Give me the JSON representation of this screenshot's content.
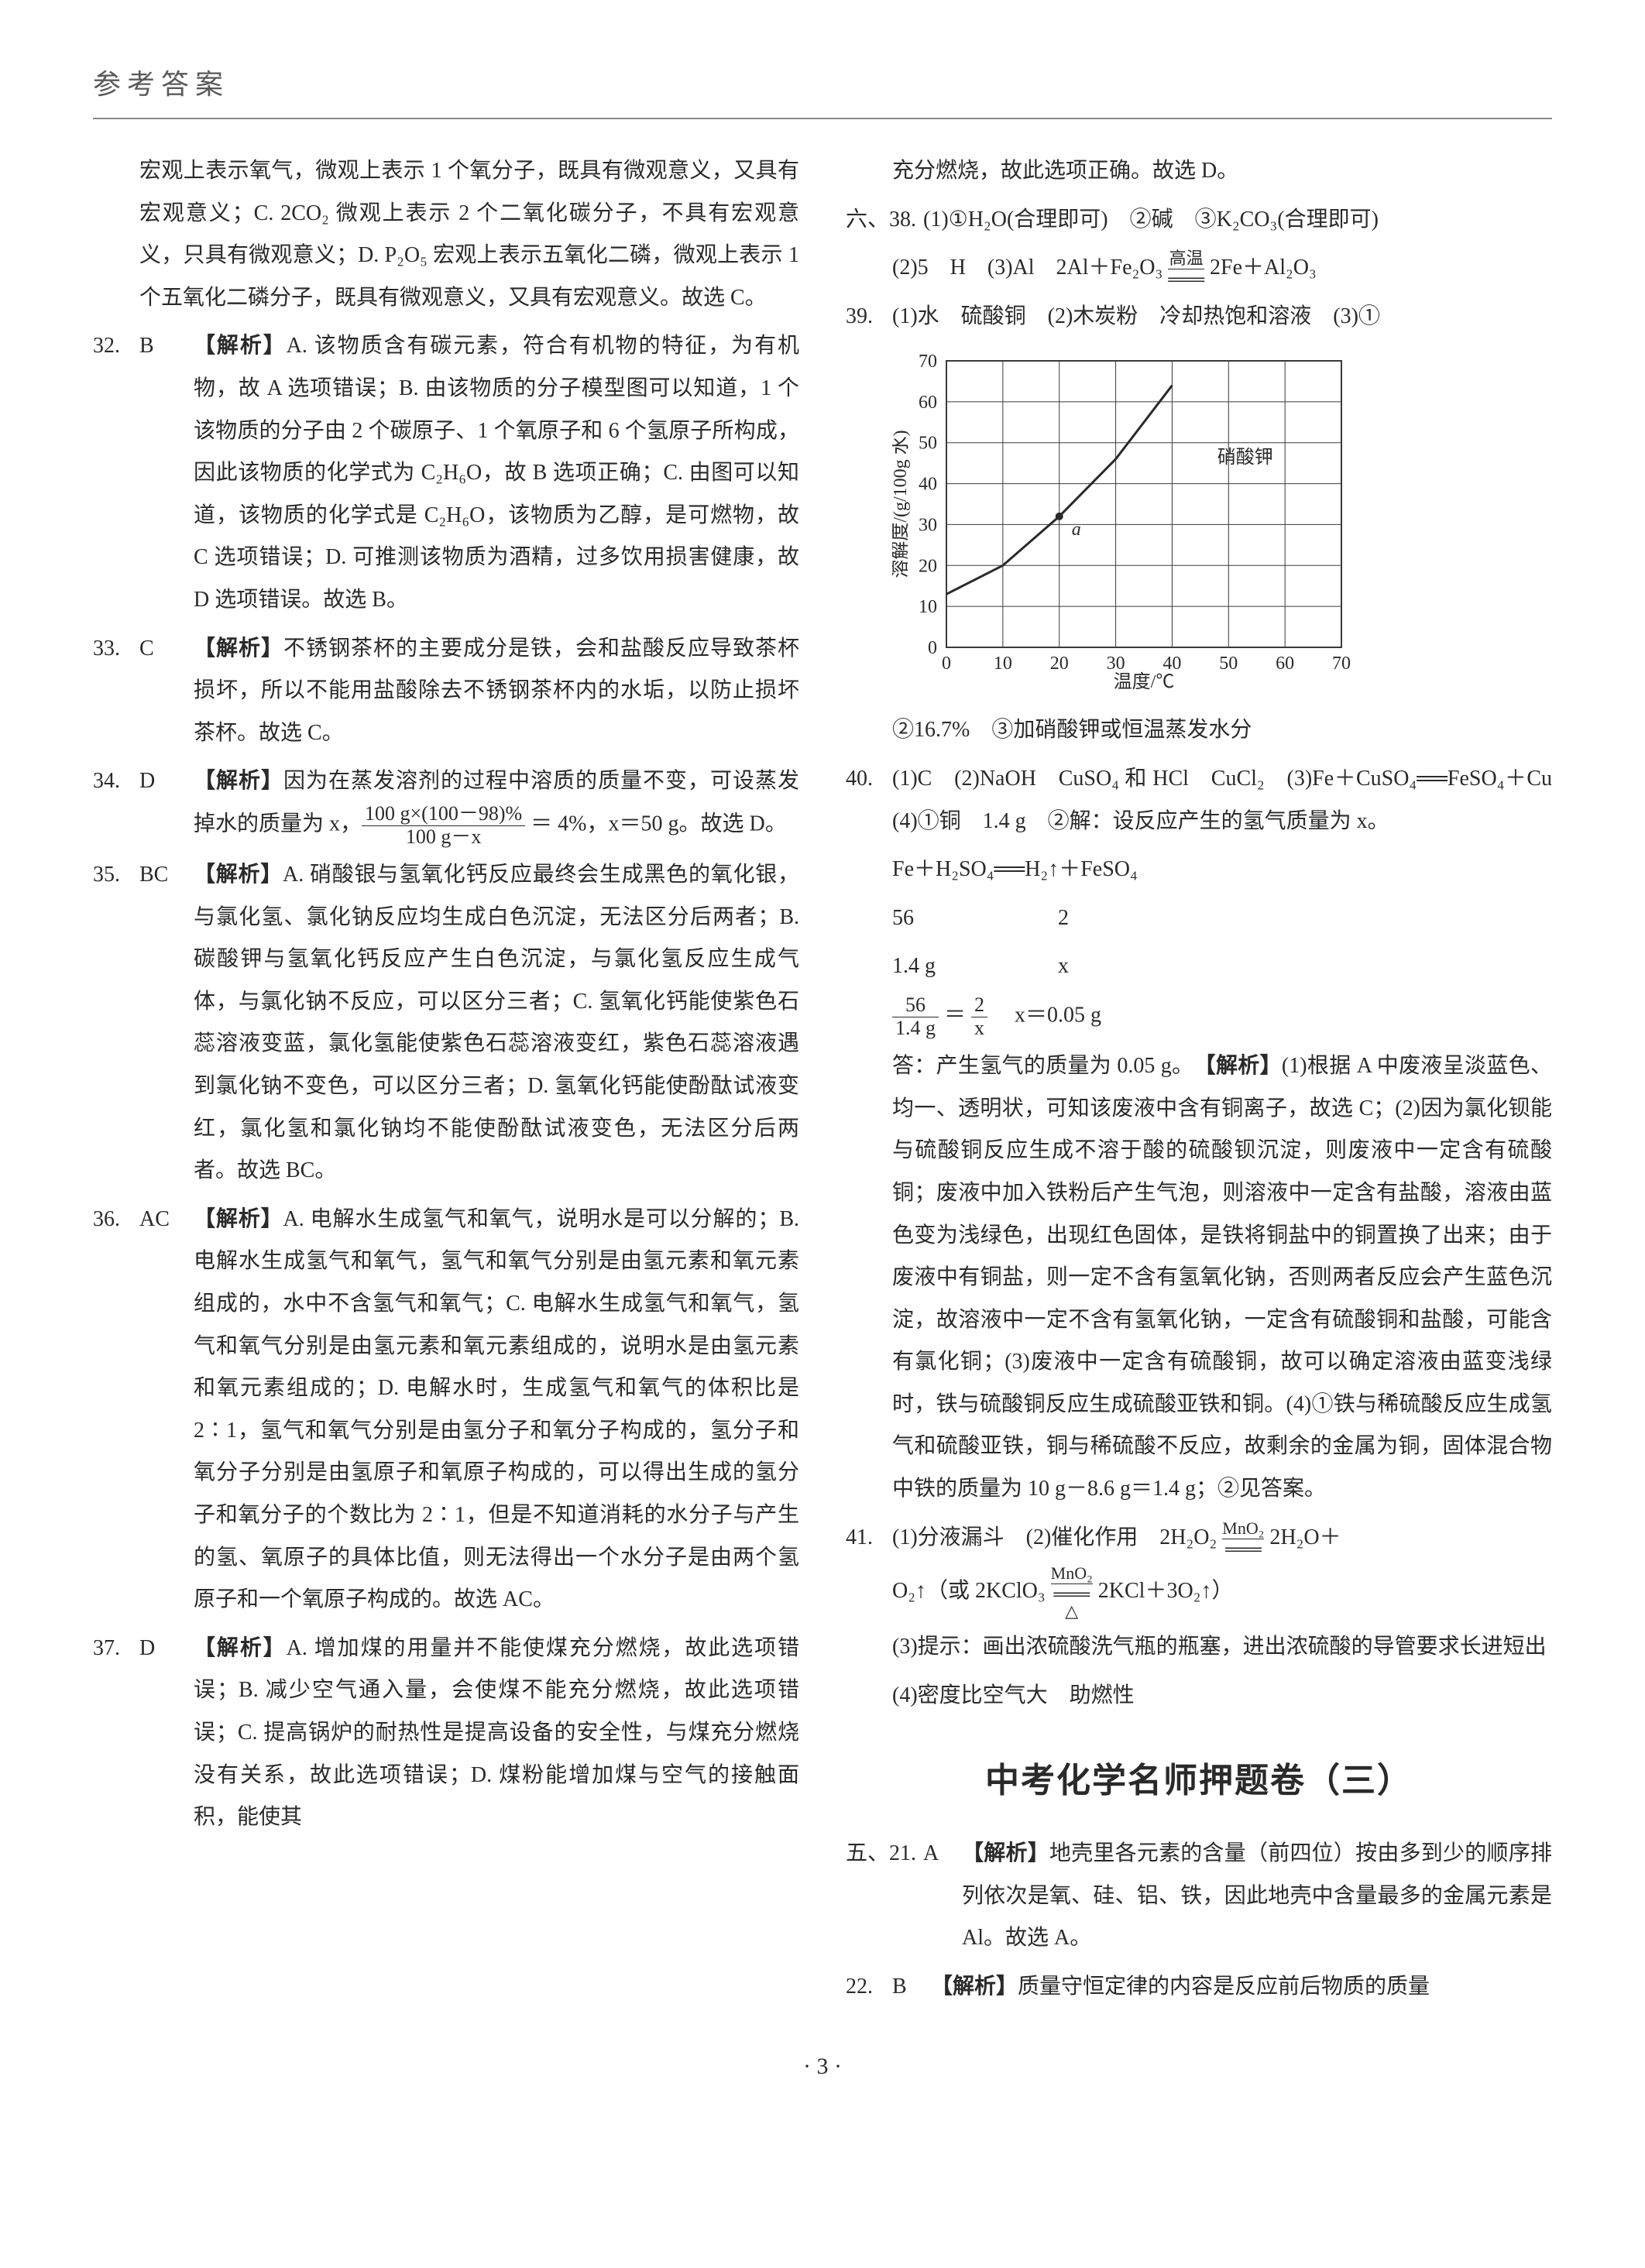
{
  "header": "参考答案",
  "page_number": "· 3 ·",
  "left_column": {
    "q31_cont": "宏观上表示氧气，微观上表示 1 个氧分子，既具有微观意义，又具有宏观意义；C. 2CO₂ 微观上表示 2 个二氧化碳分子，不具有宏观意义，只具有微观意义；D. P₂O₅ 宏观上表示五氧化二磷，微观上表示 1 个五氧化二磷分子，既具有微观意义，又具有宏观意义。故选 C。",
    "q32": {
      "num": "32.",
      "ans": "B",
      "label": "【解析】",
      "body": "A. 该物质含有碳元素，符合有机物的特征，为有机物，故 A 选项错误；B. 由该物质的分子模型图可以知道，1 个该物质的分子由 2 个碳原子、1 个氧原子和 6 个氢原子所构成，因此该物质的化学式为 C₂H₆O，故 B 选项正确；C. 由图可以知道，该物质的化学式是 C₂H₆O，该物质为乙醇，是可燃物，故 C 选项错误；D. 可推测该物质为酒精，过多饮用损害健康，故 D 选项错误。故选 B。"
    },
    "q33": {
      "num": "33.",
      "ans": "C",
      "label": "【解析】",
      "body": "不锈钢茶杯的主要成分是铁，会和盐酸反应导致茶杯损坏，所以不能用盐酸除去不锈钢茶杯内的水垢，以防止损坏茶杯。故选 C。"
    },
    "q34": {
      "num": "34.",
      "ans": "D",
      "label": "【解析】",
      "body_pre": "因为在蒸发溶剂的过程中溶质的质量不变，可设蒸发掉水的质量为 x，",
      "frac_top": "100 g×(100－98)%",
      "frac_bot": "100 g－x",
      "body_post": " ＝ 4%，x＝50 g。故选 D。"
    },
    "q35": {
      "num": "35.",
      "ans": "BC",
      "label": "【解析】",
      "body": "A. 硝酸银与氢氧化钙反应最终会生成黑色的氧化银，与氯化氢、氯化钠反应均生成白色沉淀，无法区分后两者；B. 碳酸钾与氢氧化钙反应产生白色沉淀，与氯化氢反应生成气体，与氯化钠不反应，可以区分三者；C. 氢氧化钙能使紫色石蕊溶液变蓝，氯化氢能使紫色石蕊溶液变红，紫色石蕊溶液遇到氯化钠不变色，可以区分三者；D. 氢氧化钙能使酚酞试液变红，氯化氢和氯化钠均不能使酚酞试液变色，无法区分后两者。故选 BC。"
    },
    "q36": {
      "num": "36.",
      "ans": "AC",
      "label": "【解析】",
      "body": "A. 电解水生成氢气和氧气，说明水是可以分解的；B. 电解水生成氢气和氧气，氢气和氧气分别是由氢元素和氧元素组成的，水中不含氢气和氧气；C. 电解水生成氢气和氧气，氢气和氧气分别是由氢元素和氧元素组成的，说明水是由氢元素和氧元素组成的；D. 电解水时，生成氢气和氧气的体积比是 2∶1，氢气和氧气分别是由氢分子和氧分子构成的，氢分子和氧分子分别是由氢原子和氧原子构成的，可以得出生成的氢分子和氧分子的个数比为 2∶1，但是不知道消耗的水分子与产生的氢、氧原子的具体比值，则无法得出一个水分子是由两个氢原子和一个氧原子构成的。故选 AC。"
    },
    "q37": {
      "num": "37.",
      "ans": "D",
      "label": "【解析】",
      "body": "A. 增加煤的用量并不能使煤充分燃烧，故此选项错误；B. 减少空气通入量，会使煤不能充分燃烧，故此选项错误；C. 提高锅炉的耐热性是提高设备的安全性，与煤充分燃烧没有关系，故此选项错误；D. 煤粉能增加煤与空气的接触面积，能使其"
    }
  },
  "right_column": {
    "q37_cont": "充分燃烧，故此选项正确。故选 D。",
    "q38": {
      "num": "六、38.",
      "line1": "(1)①H₂O(合理即可)　②碱　③K₂CO₃(合理即可)",
      "line2_pre": "(2)5　H　(3)Al　2Al＋Fe₂O₃ ",
      "line2_cond": "高温",
      "line2_post": " 2Fe＋Al₂O₃"
    },
    "q39": {
      "num": "39.",
      "line1": "(1)水　硫酸铜　(2)木炭粉　冷却热饱和溶液　(3)①"
    },
    "chart": {
      "type": "line",
      "x_label": "温度/℃",
      "y_label": "溶解度/(g/100g 水)",
      "x_ticks": [
        0,
        10,
        20,
        30,
        40,
        50,
        60,
        70
      ],
      "y_ticks": [
        0,
        10,
        20,
        30,
        40,
        50,
        60,
        70
      ],
      "xlim": [
        0,
        70
      ],
      "ylim": [
        0,
        70
      ],
      "grid_color": "#3a3a3a",
      "line_color": "#2a2a2a",
      "line_width": 2,
      "series_label": "硝酸钾",
      "point_label": "a",
      "curve_points": [
        [
          0,
          13
        ],
        [
          10,
          20
        ],
        [
          20,
          32
        ],
        [
          30,
          46
        ],
        [
          40,
          64
        ]
      ],
      "point_a": [
        20,
        32
      ],
      "font_size": 24
    },
    "q39_after": "②16.7%　③加硝酸钾或恒温蒸发水分",
    "q40": {
      "num": "40.",
      "line1": "(1)C　(2)NaOH　CuSO₄ 和 HCl　CuCl₂　(3)Fe＋CuSO₄══FeSO₄＋Cu　(4)①铜　1.4 g　②解：设反应产生的氢气质量为 x。",
      "eq1": "Fe＋H₂SO₄══H₂↑＋FeSO₄",
      "eq2a": "56",
      "eq2b": "2",
      "eq3a": "1.4 g",
      "eq3b": "x",
      "frac1_top": "56",
      "frac1_bot": "1.4 g",
      "frac2_top": "2",
      "frac2_bot": "x",
      "eq_result": "x＝0.05 g",
      "ans_line": "答：产生氢气的质量为 0.05 g。",
      "analysis_label": "【解析】",
      "analysis": "(1)根据 A 中废液呈淡蓝色、均一、透明状，可知该废液中含有铜离子，故选 C；(2)因为氯化钡能与硫酸铜反应生成不溶于酸的硫酸钡沉淀，则废液中一定含有硫酸铜；废液中加入铁粉后产生气泡，则溶液中一定含有盐酸，溶液由蓝色变为浅绿色，出现红色固体，是铁将铜盐中的铜置换了出来；由于废液中有铜盐，则一定不含有氢氧化钠，否则两者反应会产生蓝色沉淀，故溶液中一定不含有氢氧化钠，一定含有硫酸铜和盐酸，可能含有氯化铜；(3)废液中一定含有硫酸铜，故可以确定溶液由蓝变浅绿时，铁与硫酸铜反应生成硫酸亚铁和铜。(4)①铁与稀硫酸反应生成氢气和硫酸亚铁，铜与稀硫酸不反应，故剩余的金属为铜，固体混合物中铁的质量为 10 g－8.6 g＝1.4 g；②见答案。"
    },
    "q41": {
      "num": "41.",
      "line1_pre": "(1)分液漏斗　(2)催化作用　2H₂O₂ ",
      "line1_cond": "MnO₂",
      "line1_post": " 2H₂O＋",
      "line2_pre": "O₂↑（或 2KClO₃ ",
      "line2_cond_top": "MnO₂",
      "line2_cond_bot": "△",
      "line2_post": " 2KCl＋3O₂↑）",
      "line3": "(3)提示：画出浓硫酸洗气瓶的瓶塞，进出浓硫酸的导管要求长进短出",
      "line4": "(4)密度比空气大　助燃性"
    },
    "section3_title": "中考化学名师押题卷（三）",
    "q21": {
      "num": "五、21.",
      "ans": "A",
      "label": "【解析】",
      "body": "地壳里各元素的含量（前四位）按由多到少的顺序排列依次是氧、硅、铝、铁，因此地壳中含量最多的金属元素是 Al。故选 A。"
    },
    "q22": {
      "num": "22.",
      "ans": "B",
      "label": "【解析】",
      "body": "质量守恒定律的内容是反应前后物质的质量"
    }
  }
}
